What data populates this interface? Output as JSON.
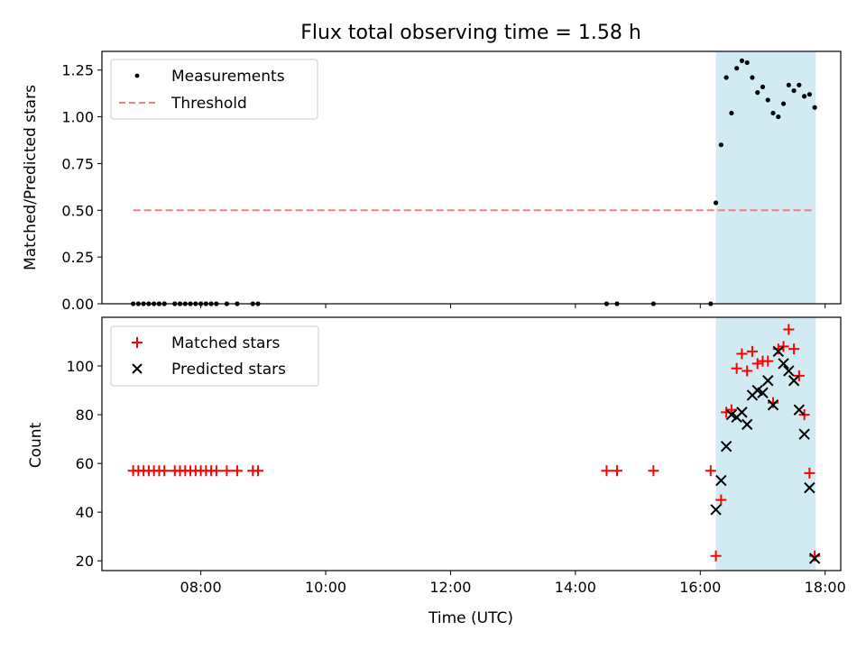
{
  "chart_data": [
    {
      "type": "scatter",
      "title": "Flux total observing time = 1.58 h",
      "ylabel": "Matched/Predicted stars",
      "xlabel": "",
      "xlim": [
        "06:25",
        "18:15"
      ],
      "ylim": [
        0,
        1.35
      ],
      "yticks": [
        0.0,
        0.25,
        0.5,
        0.75,
        1.0,
        1.25
      ],
      "ytick_labels": [
        "0.00",
        "0.25",
        "0.50",
        "0.75",
        "1.00",
        "1.25"
      ],
      "shaded_interval": [
        "16:15",
        "17:51"
      ],
      "shaded_color": "#add8e6",
      "legend": {
        "placement": "top-left",
        "entries": [
          "Measurements",
          "Threshold"
        ]
      },
      "series": [
        {
          "name": "Measurements",
          "marker": "dot",
          "color": "#000000",
          "x": [
            "06:55",
            "07:00",
            "07:05",
            "07:10",
            "07:15",
            "07:20",
            "07:25",
            "07:35",
            "07:40",
            "07:45",
            "07:50",
            "07:55",
            "08:00",
            "08:05",
            "08:10",
            "08:15",
            "08:25",
            "08:35",
            "08:50",
            "08:55",
            "14:30",
            "14:40",
            "15:15",
            "16:10",
            "16:15",
            "16:20",
            "16:25",
            "16:30",
            "16:35",
            "16:40",
            "16:45",
            "16:50",
            "16:55",
            "17:00",
            "17:05",
            "17:10",
            "17:15",
            "17:20",
            "17:25",
            "17:30",
            "17:35",
            "17:40",
            "17:45",
            "17:50"
          ],
          "y": [
            0,
            0,
            0,
            0,
            0,
            0,
            0,
            0,
            0,
            0,
            0,
            0,
            0,
            0,
            0,
            0,
            0,
            0,
            0,
            0,
            0,
            0,
            0,
            0,
            0.54,
            0.85,
            1.21,
            1.02,
            1.26,
            1.3,
            1.29,
            1.21,
            1.13,
            1.16,
            1.09,
            1.02,
            1.0,
            1.07,
            1.17,
            1.14,
            1.17,
            1.11,
            1.12,
            1.05
          ]
        },
        {
          "name": "Threshold",
          "style": "dashed",
          "color": "#f08080",
          "x": [
            "06:55",
            "17:50"
          ],
          "y": [
            0.5,
            0.5
          ]
        }
      ]
    },
    {
      "type": "scatter",
      "title": "",
      "ylabel": "Count",
      "xlabel": "Time (UTC)",
      "xlim": [
        "06:25",
        "18:15"
      ],
      "ylim": [
        16,
        120
      ],
      "yticks": [
        20,
        40,
        60,
        80,
        100
      ],
      "ytick_labels": [
        "20",
        "40",
        "60",
        "80",
        "100"
      ],
      "xticks": [
        "08:00",
        "10:00",
        "12:00",
        "14:00",
        "16:00",
        "18:00"
      ],
      "shaded_interval": [
        "16:15",
        "17:51"
      ],
      "shaded_color": "#add8e6",
      "legend": {
        "placement": "top-left",
        "entries": [
          "Matched stars",
          "Predicted stars"
        ]
      },
      "series": [
        {
          "name": "Matched stars",
          "marker": "plus",
          "color": "#ff0000",
          "x": [
            "06:55",
            "07:00",
            "07:05",
            "07:10",
            "07:15",
            "07:20",
            "07:25",
            "07:35",
            "07:40",
            "07:45",
            "07:50",
            "07:55",
            "08:00",
            "08:05",
            "08:10",
            "08:15",
            "08:25",
            "08:35",
            "08:50",
            "08:55",
            "14:30",
            "14:40",
            "15:15",
            "16:10",
            "16:15",
            "16:20",
            "16:25",
            "16:30",
            "16:35",
            "16:40",
            "16:45",
            "16:50",
            "16:55",
            "17:00",
            "17:05",
            "17:10",
            "17:15",
            "17:20",
            "17:25",
            "17:30",
            "17:35",
            "17:40",
            "17:45",
            "17:50"
          ],
          "y": [
            57,
            57,
            57,
            57,
            57,
            57,
            57,
            57,
            57,
            57,
            57,
            57,
            57,
            57,
            57,
            57,
            57,
            57,
            57,
            57,
            57,
            57,
            57,
            57,
            22,
            45,
            81,
            82,
            99,
            105,
            98,
            106,
            101,
            102,
            102,
            85,
            107,
            108,
            115,
            107,
            96,
            80,
            56,
            22
          ]
        },
        {
          "name": "Predicted stars",
          "marker": "cross",
          "color": "#000000",
          "x": [
            "16:15",
            "16:20",
            "16:25",
            "16:30",
            "16:35",
            "16:40",
            "16:45",
            "16:50",
            "16:55",
            "17:00",
            "17:05",
            "17:10",
            "17:15",
            "17:20",
            "17:25",
            "17:30",
            "17:35",
            "17:40",
            "17:45",
            "17:50"
          ],
          "y": [
            41,
            53,
            67,
            80,
            79,
            81,
            76,
            88,
            90,
            89,
            94,
            84,
            106,
            101,
            98,
            94,
            82,
            72,
            50,
            21
          ]
        }
      ]
    }
  ]
}
